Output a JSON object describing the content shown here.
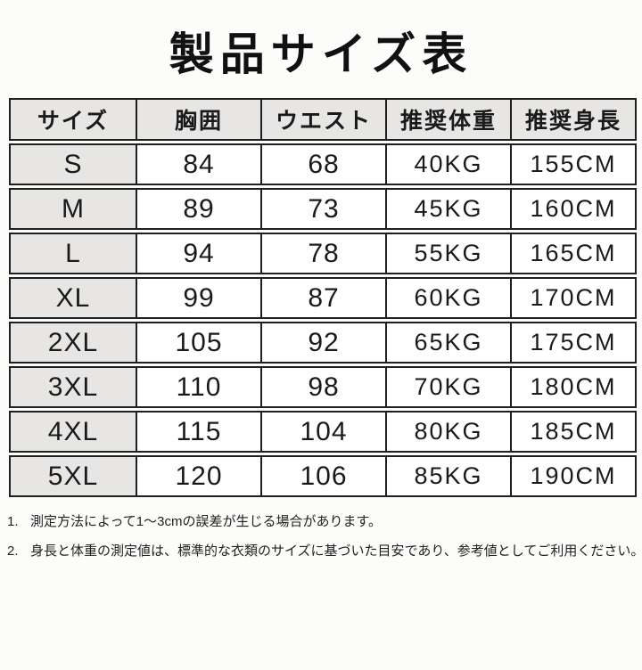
{
  "title": "製品サイズ表",
  "colors": {
    "header_bg": "#e7e6e4",
    "size_column_bg": "#e7e6e4",
    "border": "#1f1f1f",
    "text": "#1a1a1a",
    "background": "#fcfcfa"
  },
  "chart_data": {
    "type": "table",
    "title": "製品サイズ表",
    "columns": [
      "サイズ",
      "胸囲",
      "ウエスト",
      "推奨体重",
      "推奨身長"
    ],
    "rows": [
      [
        "S",
        "84",
        "68",
        "40KG",
        "155CM"
      ],
      [
        "M",
        "89",
        "73",
        "45KG",
        "160CM"
      ],
      [
        "L",
        "94",
        "78",
        "55KG",
        "165CM"
      ],
      [
        "XL",
        "99",
        "87",
        "60KG",
        "170CM"
      ],
      [
        "2XL",
        "105",
        "92",
        "65KG",
        "175CM"
      ],
      [
        "3XL",
        "110",
        "98",
        "70KG",
        "180CM"
      ],
      [
        "4XL",
        "115",
        "104",
        "80KG",
        "185CM"
      ],
      [
        "5XL",
        "120",
        "106",
        "85KG",
        "190CM"
      ]
    ],
    "notes": [
      "測定方法によって1～3cmの誤差が生じる場合があります。",
      "身長と体重の測定値は、標準的な衣類のサイズに基づいた目安であり、参考値としてご利用ください。"
    ]
  },
  "footnotes": [
    {
      "num": "1.",
      "text": "測定方法によって1～3cmの誤差が生じる場合があります。"
    },
    {
      "num": "2.",
      "text": "身長と体重の測定値は、標準的な衣類のサイズに基づいた目安であり、参考値としてご利用ください。"
    }
  ]
}
